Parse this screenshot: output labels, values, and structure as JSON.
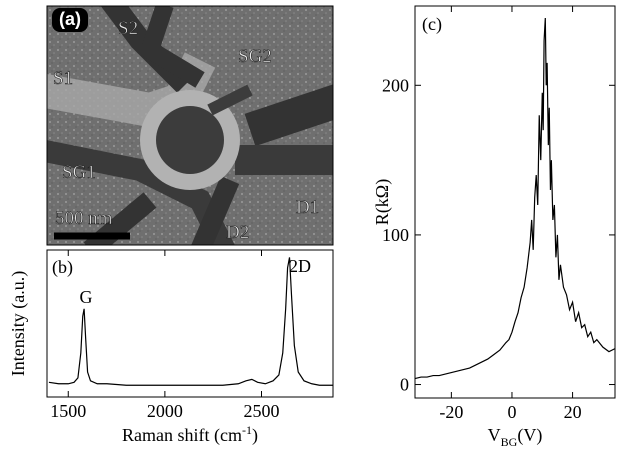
{
  "image_panel": {
    "label": "(a)",
    "regions": [
      "S2",
      "S1",
      "SG2",
      "SG1",
      "D1",
      "D2"
    ],
    "scale_bar": "500 nm"
  },
  "chart_data": [
    {
      "type": "line",
      "panel": "(b)",
      "x_label": [
        "Raman shift (cm",
        "-1",
        ")"
      ],
      "y_label": "Intensity (a.u.)",
      "annotations": [
        "G",
        "2D"
      ],
      "x": [
        1400,
        1450,
        1500,
        1530,
        1550,
        1565,
        1575,
        1582,
        1590,
        1600,
        1615,
        1650,
        1700,
        1800,
        1900,
        2000,
        2100,
        2200,
        2300,
        2380,
        2420,
        2450,
        2480,
        2520,
        2560,
        2590,
        2610,
        2625,
        2635,
        2645,
        2655,
        2670,
        2690,
        2720,
        2760,
        2800,
        2870
      ],
      "series": [
        {
          "color": "#000000",
          "values": [
            0.1,
            0.09,
            0.09,
            0.1,
            0.13,
            0.3,
            0.55,
            0.6,
            0.4,
            0.17,
            0.11,
            0.09,
            0.09,
            0.08,
            0.08,
            0.08,
            0.08,
            0.08,
            0.08,
            0.09,
            0.11,
            0.12,
            0.1,
            0.09,
            0.11,
            0.15,
            0.3,
            0.6,
            0.88,
            0.95,
            0.7,
            0.35,
            0.17,
            0.11,
            0.09,
            0.08,
            0.08
          ]
        }
      ],
      "xlim": [
        1390,
        2870
      ],
      "ylim": [
        0,
        1
      ],
      "xticks": [
        1500,
        2000,
        2500
      ]
    },
    {
      "type": "line",
      "panel": "(c)",
      "x_label": [
        "V",
        "BG",
        "(V)"
      ],
      "y_label": "R(kΩ)",
      "x": [
        -32,
        -30,
        -28,
        -26,
        -24,
        -22,
        -20,
        -18,
        -16,
        -14,
        -12,
        -10,
        -8,
        -6,
        -4,
        -2,
        -1,
        0,
        1,
        2,
        3,
        4,
        5,
        6,
        6.5,
        7,
        7.5,
        8,
        8.5,
        9,
        9.5,
        10,
        10.3,
        10.6,
        11,
        11.3,
        11.6,
        12,
        12.3,
        12.7,
        13,
        13.5,
        14,
        14.5,
        15,
        15.5,
        16,
        17,
        18,
        19,
        20,
        21,
        22,
        23,
        24,
        25,
        26,
        27,
        28,
        30,
        32,
        34
      ],
      "series": [
        {
          "color": "#000000",
          "values": [
            4,
            5,
            5,
            6,
            6,
            7,
            8,
            9,
            10,
            11,
            13,
            15,
            17,
            20,
            23,
            28,
            30,
            35,
            42,
            48,
            58,
            65,
            78,
            95,
            110,
            90,
            125,
            140,
            120,
            180,
            150,
            195,
            170,
            230,
            245,
            200,
            215,
            160,
            185,
            130,
            150,
            110,
            120,
            85,
            100,
            70,
            80,
            65,
            60,
            50,
            55,
            42,
            48,
            38,
            40,
            32,
            35,
            28,
            30,
            25,
            22,
            24
          ]
        }
      ],
      "xlim": [
        -32,
        34
      ],
      "ylim": [
        -9,
        253
      ],
      "xticks": [
        -20,
        0,
        20
      ],
      "yticks": [
        0,
        100,
        200
      ]
    }
  ]
}
